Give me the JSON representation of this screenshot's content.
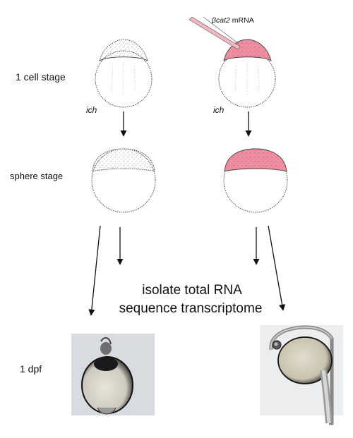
{
  "stage_labels": {
    "one_cell": "1 cell stage",
    "sphere": "sphere stage",
    "one_dpf": "1 dpf"
  },
  "strain_label_left": "ich",
  "strain_label_right": "ich",
  "injection": {
    "gene": "βcat2",
    "suffix": " mRNA",
    "color": "#ee8fa0"
  },
  "procedure": {
    "line1": "isolate total RNA",
    "line2": "sequence transcriptome"
  },
  "colors": {
    "injected_tint": "#ee8fa0",
    "outline": "#333333",
    "arrow": "#111111"
  }
}
